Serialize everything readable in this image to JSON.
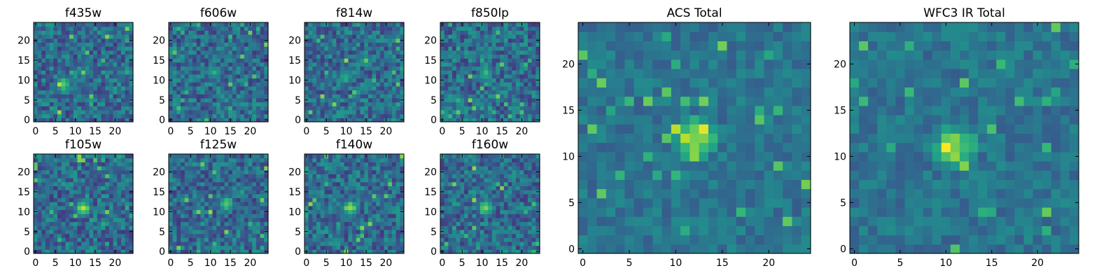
{
  "chart_data": [
    {
      "type": "heatmap",
      "title": "f435w",
      "grid": false,
      "colormap": "viridis",
      "xlim": [
        0,
        24
      ],
      "ylim": [
        0,
        24
      ],
      "xticks": [
        "0",
        "5",
        "10",
        "15",
        "20"
      ],
      "yticks": [
        "0",
        "5",
        "10",
        "15",
        "20"
      ],
      "peak": {
        "x": 7,
        "y": 9,
        "level": 0.85
      }
    },
    {
      "type": "heatmap",
      "title": "f606w",
      "grid": false,
      "colormap": "viridis",
      "xlim": [
        0,
        24
      ],
      "ylim": [
        0,
        24
      ],
      "xticks": [
        "0",
        "5",
        "10",
        "15",
        "20"
      ],
      "yticks": [
        "0",
        "5",
        "10",
        "15",
        "20"
      ],
      "peak": {
        "x": 11,
        "y": 12,
        "level": 0.7
      }
    },
    {
      "type": "heatmap",
      "title": "f814w",
      "grid": false,
      "colormap": "viridis",
      "xlim": [
        0,
        24
      ],
      "ylim": [
        0,
        24
      ],
      "xticks": [
        "0",
        "5",
        "10",
        "15",
        "20"
      ],
      "yticks": [
        "0",
        "5",
        "10",
        "15",
        "20"
      ],
      "peak": {
        "x": 10,
        "y": 11,
        "level": 0.75
      }
    },
    {
      "type": "heatmap",
      "title": "f850lp",
      "grid": false,
      "colormap": "viridis",
      "xlim": [
        0,
        24
      ],
      "ylim": [
        0,
        24
      ],
      "xticks": [
        "0",
        "5",
        "10",
        "15",
        "20"
      ],
      "yticks": [
        "0",
        "5",
        "10",
        "15",
        "20"
      ],
      "peak": {
        "x": 11,
        "y": 12,
        "level": 0.7
      }
    },
    {
      "type": "heatmap",
      "title": "f105w",
      "grid": false,
      "colormap": "viridis",
      "xlim": [
        0,
        24
      ],
      "ylim": [
        0,
        24
      ],
      "xticks": [
        "0",
        "5",
        "10",
        "15",
        "20"
      ],
      "yticks": [
        "0",
        "5",
        "10",
        "15",
        "20"
      ],
      "peak": {
        "x": 12,
        "y": 11,
        "level": 0.95
      }
    },
    {
      "type": "heatmap",
      "title": "f125w",
      "grid": false,
      "colormap": "viridis",
      "xlim": [
        0,
        24
      ],
      "ylim": [
        0,
        24
      ],
      "xticks": [
        "0",
        "5",
        "10",
        "15",
        "20"
      ],
      "yticks": [
        "0",
        "5",
        "10",
        "15",
        "20"
      ],
      "peak": {
        "x": 14,
        "y": 12,
        "level": 0.85
      }
    },
    {
      "type": "heatmap",
      "title": "f140w",
      "grid": false,
      "colormap": "viridis",
      "xlim": [
        0,
        24
      ],
      "ylim": [
        0,
        24
      ],
      "xticks": [
        "0",
        "5",
        "10",
        "15",
        "20"
      ],
      "yticks": [
        "0",
        "5",
        "10",
        "15",
        "20"
      ],
      "peak": {
        "x": 11,
        "y": 11,
        "level": 0.95
      }
    },
    {
      "type": "heatmap",
      "title": "f160w",
      "grid": false,
      "colormap": "viridis",
      "xlim": [
        0,
        24
      ],
      "ylim": [
        0,
        24
      ],
      "xticks": [
        "0",
        "5",
        "10",
        "15",
        "20"
      ],
      "yticks": [
        "0",
        "5",
        "10",
        "15",
        "20"
      ],
      "peak": {
        "x": 11,
        "y": 11,
        "level": 0.95
      }
    },
    {
      "type": "heatmap",
      "title": "ACS Total",
      "grid": false,
      "colormap": "viridis",
      "xlim": [
        0,
        24
      ],
      "ylim": [
        0,
        24
      ],
      "xticks": [
        "0",
        "5",
        "10",
        "15",
        "20"
      ],
      "yticks": [
        "0",
        "5",
        "10",
        "15",
        "20"
      ],
      "peak": {
        "x": 12,
        "y": 12,
        "level": 1.0
      }
    },
    {
      "type": "heatmap",
      "title": "WFC3 IR Total",
      "grid": false,
      "colormap": "viridis",
      "xlim": [
        0,
        24
      ],
      "ylim": [
        0,
        24
      ],
      "xticks": [
        "0",
        "5",
        "10",
        "15",
        "20"
      ],
      "yticks": [
        "0",
        "5",
        "10",
        "15",
        "20"
      ],
      "peak": {
        "x": 11,
        "y": 11,
        "level": 1.0
      }
    }
  ],
  "colors": {
    "background": "#ffffff",
    "axes": "#000000",
    "cmap_low": "#440154",
    "cmap_high": "#fde725"
  }
}
